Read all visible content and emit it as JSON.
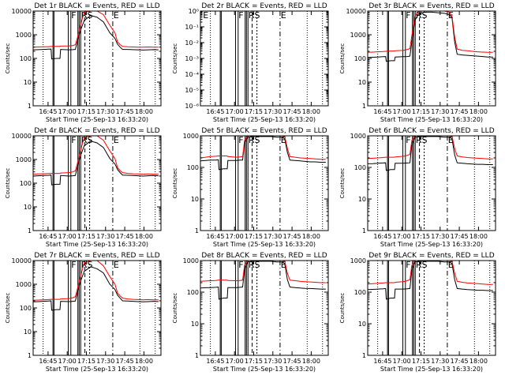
{
  "chart_data": {
    "type": "line",
    "layout": "3x3 grid",
    "xlabel": "Start Time (25-Sep-13 16:33:20)",
    "ylabel": "Counts/sec",
    "x_tick_labels": [
      "16:45",
      "17:00",
      "17:15",
      "17:30",
      "17:45",
      "18:00"
    ],
    "x_range_minutes_after_start": [
      0,
      100
    ],
    "y_scale": "log",
    "line_colors": {
      "events": "#000000",
      "lld": "#ff0000"
    },
    "time_series_minutes": [
      0,
      4,
      8,
      12,
      14,
      14.5,
      18,
      21,
      21.5,
      28,
      31,
      33,
      34.5,
      37,
      40,
      45,
      50,
      55,
      60,
      64,
      66,
      68,
      70,
      74,
      78,
      82,
      86,
      90,
      94,
      98
    ],
    "panels": [
      {
        "title": "Det 1r BLACK = Events, RED = LLD",
        "ylim": [
          1,
          10000
        ],
        "y_tick_labels": [
          "1",
          "10",
          "100",
          "1000",
          "10000"
        ],
        "markers": {
          "E_top": "E",
          "E_bottom": "",
          "F": "F",
          "RS": "RS"
        },
        "series": [
          {
            "label": "Events",
            "values": [
              230,
              235,
              240,
              245,
              250,
              95,
              100,
              100,
              240,
              230,
              235,
              240,
              500,
              1500,
              4000,
              6500,
              5500,
              3500,
              1200,
              700,
              400,
              300,
              240,
              240,
              235,
              230,
              225,
              230,
              235,
              230
            ]
          },
          {
            "label": "LLD",
            "values": [
              300,
              305,
              310,
              310,
              320,
              320,
              320,
              320,
              330,
              340,
              350,
              380,
              700,
              2500,
              9000,
              10000,
              10000,
              7000,
              2500,
              1200,
              500,
              380,
              320,
              310,
              305,
              300,
              300,
              305,
              300,
              300
            ]
          }
        ]
      },
      {
        "title": "Det 2r BLACK = Events, RED = LLD",
        "ylim": [
          1e-06,
          1
        ],
        "y_tick_labels": [
          "10⁻⁶",
          "10⁻⁵",
          "10⁻⁴",
          "10⁻³",
          "10⁻²",
          "10⁻¹",
          "10⁰"
        ],
        "markers": {
          "E_top": "E",
          "E_bottom": "E",
          "F": "F",
          "RS": "RS"
        },
        "series": []
      },
      {
        "title": "Det 3r BLACK = Events, RED = LLD",
        "ylim": [
          1,
          10000
        ],
        "y_tick_labels": [
          "1",
          "10",
          "100",
          "1000",
          "10000"
        ],
        "markers": {
          "E_top": "E",
          "E_bottom": "",
          "F": "F",
          "RS": "RS"
        },
        "series": [
          {
            "label": "Events",
            "values": [
              110,
              112,
              115,
              118,
              120,
              75,
              80,
              80,
              115,
              118,
              120,
              125,
              500,
              4000,
              8000,
              9000,
              9000,
              8500,
              8000,
              7000,
              5000,
              500,
              150,
              140,
              135,
              130,
              125,
              120,
              115,
              115
            ]
          },
          {
            "label": "LLD",
            "values": [
              180,
              185,
              190,
              195,
              200,
              200,
              205,
              205,
              210,
              220,
              240,
              260,
              900,
              6000,
              10000,
              10000,
              10000,
              10000,
              10000,
              9000,
              6000,
              800,
              250,
              220,
              210,
              200,
              190,
              185,
              180,
              180
            ]
          }
        ]
      },
      {
        "title": "Det 4r BLACK = Events, RED = LLD",
        "ylim": [
          1,
          10000
        ],
        "y_tick_labels": [
          "1",
          "10",
          "100",
          "1000",
          "10000"
        ],
        "markers": {
          "E_top": "E",
          "E_bottom": "",
          "F": "F",
          "RS": "RS"
        },
        "series": [
          {
            "label": "Events",
            "values": [
              200,
              205,
              210,
              215,
              220,
              85,
              90,
              90,
              210,
              200,
              205,
              210,
              450,
              1400,
              3800,
              6000,
              5000,
              3200,
              1100,
              650,
              380,
              280,
              220,
              215,
              210,
              205,
              200,
              205,
              210,
              205
            ]
          },
          {
            "label": "LLD",
            "values": [
              240,
              245,
              250,
              255,
              260,
              260,
              260,
              260,
              270,
              280,
              300,
              330,
              650,
              2300,
              8500,
              10000,
              10000,
              6500,
              2300,
              1100,
              460,
              340,
              280,
              260,
              250,
              245,
              240,
              245,
              240,
              240
            ]
          }
        ]
      },
      {
        "title": "Det 5r BLACK = Events, RED = LLD",
        "ylim": [
          1,
          1000
        ],
        "y_tick_labels": [
          "1",
          "10",
          "100",
          "1000"
        ],
        "markers": {
          "E_top": "E",
          "E_bottom": "",
          "F": "F",
          "RS": "RS"
        },
        "series": [
          {
            "label": "Events",
            "values": [
              160,
              165,
              170,
              170,
              175,
              85,
              90,
              90,
              165,
              165,
              170,
              170,
              600,
              900,
              950,
              950,
              950,
              950,
              900,
              900,
              800,
              300,
              170,
              165,
              160,
              155,
              150,
              150,
              145,
              145
            ]
          },
          {
            "label": "LLD",
            "values": [
              200,
              210,
              220,
              225,
              230,
              230,
              230,
              230,
              220,
              210,
              215,
              220,
              700,
              1000,
              1000,
              1000,
              1000,
              1000,
              1000,
              1000,
              950,
              400,
              220,
              210,
              200,
              195,
              190,
              185,
              180,
              180
            ]
          }
        ]
      },
      {
        "title": "Det 6r BLACK = Events, RED = LLD",
        "ylim": [
          1,
          1000
        ],
        "y_tick_labels": [
          "1",
          "10",
          "100",
          "1000"
        ],
        "markers": {
          "E_top": "E",
          "E_bottom": "",
          "F": "F",
          "RS": "RS"
        },
        "series": [
          {
            "label": "Events",
            "values": [
              130,
              132,
              135,
              138,
              140,
              80,
              85,
              85,
              135,
              135,
              138,
              140,
              500,
              900,
              950,
              950,
              950,
              950,
              900,
              900,
              800,
              250,
              140,
              135,
              130,
              128,
              125,
              125,
              122,
              122
            ]
          },
          {
            "label": "LLD",
            "values": [
              190,
              195,
              200,
              205,
              210,
              210,
              210,
              210,
              215,
              225,
              240,
              260,
              700,
              1000,
              1000,
              1000,
              1000,
              1000,
              1000,
              1000,
              950,
              400,
              230,
              215,
              205,
              200,
              195,
              190,
              185,
              185
            ]
          }
        ]
      },
      {
        "title": "Det 7r BLACK = Events, RED = LLD",
        "ylim": [
          1,
          10000
        ],
        "y_tick_labels": [
          "1",
          "10",
          "100",
          "1000",
          "10000"
        ],
        "markers": {
          "E_top": "E",
          "E_bottom": "",
          "F": "F",
          "RS": "RS"
        },
        "series": [
          {
            "label": "Events",
            "values": [
              180,
              185,
              190,
              195,
              200,
              80,
              85,
              85,
              190,
              185,
              190,
              195,
              420,
              1300,
              3500,
              5500,
              4500,
              3000,
              1000,
              600,
              350,
              260,
              200,
              195,
              190,
              185,
              180,
              185,
              190,
              185
            ]
          },
          {
            "label": "LLD",
            "values": [
              210,
              215,
              220,
              225,
              230,
              230,
              230,
              230,
              240,
              250,
              270,
              300,
              600,
              2100,
              8000,
              10000,
              10000,
              6000,
              2100,
              1000,
              430,
              320,
              260,
              240,
              230,
              225,
              220,
              225,
              220,
              220
            ]
          }
        ]
      },
      {
        "title": "Det 8r BLACK = Events, RED = LLD",
        "ylim": [
          1,
          1000
        ],
        "y_tick_labels": [
          "1",
          "10",
          "100",
          "1000"
        ],
        "markers": {
          "E_top": "E",
          "E_bottom": "",
          "F": "F",
          "RS": "RS"
        },
        "series": [
          {
            "label": "Events",
            "values": [
              135,
              138,
              140,
              142,
              145,
              60,
              65,
              65,
              140,
              140,
              142,
              145,
              500,
              900,
              950,
              950,
              950,
              950,
              900,
              900,
              800,
              250,
              145,
              140,
              135,
              132,
              130,
              128,
              125,
              125
            ]
          },
          {
            "label": "LLD",
            "values": [
              220,
              225,
              230,
              235,
              240,
              240,
              240,
              240,
              235,
              230,
              235,
              240,
              700,
              1000,
              1000,
              1000,
              1000,
              1000,
              1000,
              1000,
              950,
              400,
              240,
              230,
              220,
              215,
              210,
              205,
              200,
              200
            ]
          }
        ]
      },
      {
        "title": "Det 9r BLACK = Events, RED = LLD",
        "ylim": [
          1,
          1000
        ],
        "y_tick_labels": [
          "1",
          "10",
          "100",
          "1000"
        ],
        "markers": {
          "E_top": "E",
          "E_bottom": "",
          "F": "F",
          "RS": "RS"
        },
        "series": [
          {
            "label": "Events",
            "values": [
              120,
              122,
              125,
              128,
              130,
              60,
              65,
              65,
              125,
              125,
              128,
              130,
              500,
              900,
              950,
              950,
              950,
              950,
              900,
              900,
              800,
              250,
              130,
              125,
              120,
              118,
              115,
              115,
              112,
              112
            ]
          },
          {
            "label": "LLD",
            "values": [
              180,
              185,
              190,
              195,
              200,
              200,
              200,
              200,
              205,
              215,
              230,
              250,
              700,
              1000,
              1000,
              1000,
              1000,
              1000,
              1000,
              1000,
              950,
              400,
              220,
              205,
              195,
              190,
              185,
              180,
              175,
              175
            ]
          }
        ]
      }
    ]
  }
}
